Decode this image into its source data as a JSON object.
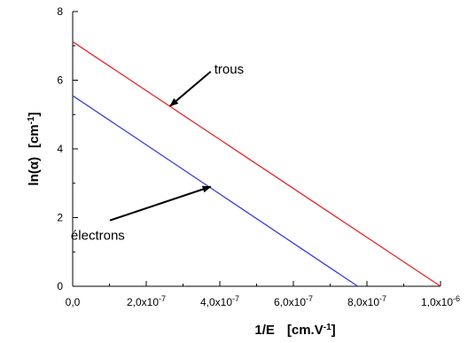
{
  "chart_data": {
    "type": "line",
    "xlabel": {
      "main": "1/E",
      "unit_prefix": "[cm.V",
      "unit_sup": "-1",
      "unit_suffix": "]"
    },
    "ylabel": {
      "main": "ln(α)",
      "unit_prefix": "[cm",
      "unit_sup": "-1",
      "unit_suffix": "]"
    },
    "xlim": [
      0,
      1e-06
    ],
    "ylim": [
      0,
      8
    ],
    "x_ticks": [
      {
        "value": 0,
        "mantissa": "0,0",
        "exp": ""
      },
      {
        "value": 2e-07,
        "mantissa": "2,0x10",
        "exp": "-7"
      },
      {
        "value": 4e-07,
        "mantissa": "4,0x10",
        "exp": "-7"
      },
      {
        "value": 6e-07,
        "mantissa": "6,0x10",
        "exp": "-7"
      },
      {
        "value": 8e-07,
        "mantissa": "8,0x10",
        "exp": "-7"
      },
      {
        "value": 1e-06,
        "mantissa": "1,0x10",
        "exp": "-6"
      }
    ],
    "y_ticks": [
      {
        "value": 0,
        "label": "0"
      },
      {
        "value": 2,
        "label": "2"
      },
      {
        "value": 4,
        "label": "4"
      },
      {
        "value": 6,
        "label": "6"
      },
      {
        "value": 8,
        "label": "8"
      }
    ],
    "grid": false,
    "series": [
      {
        "name": "trous",
        "color": "#e8262a",
        "x": [
          0,
          1e-06
        ],
        "y": [
          7.12,
          0
        ]
      },
      {
        "name": "électrons",
        "color": "#3a3adf",
        "x": [
          0,
          7.75e-07
        ],
        "y": [
          5.55,
          0
        ]
      }
    ],
    "annotations": [
      {
        "text": "trous",
        "series": 0,
        "text_at": [
          3.85e-07,
          6.2
        ],
        "arrow_to": [
          2.65e-07,
          5.25
        ]
      },
      {
        "text": "électrons",
        "series": 1,
        "text_at": [
          -5e-09,
          1.35
        ],
        "arrow_to": [
          3.75e-07,
          2.9
        ]
      }
    ]
  }
}
